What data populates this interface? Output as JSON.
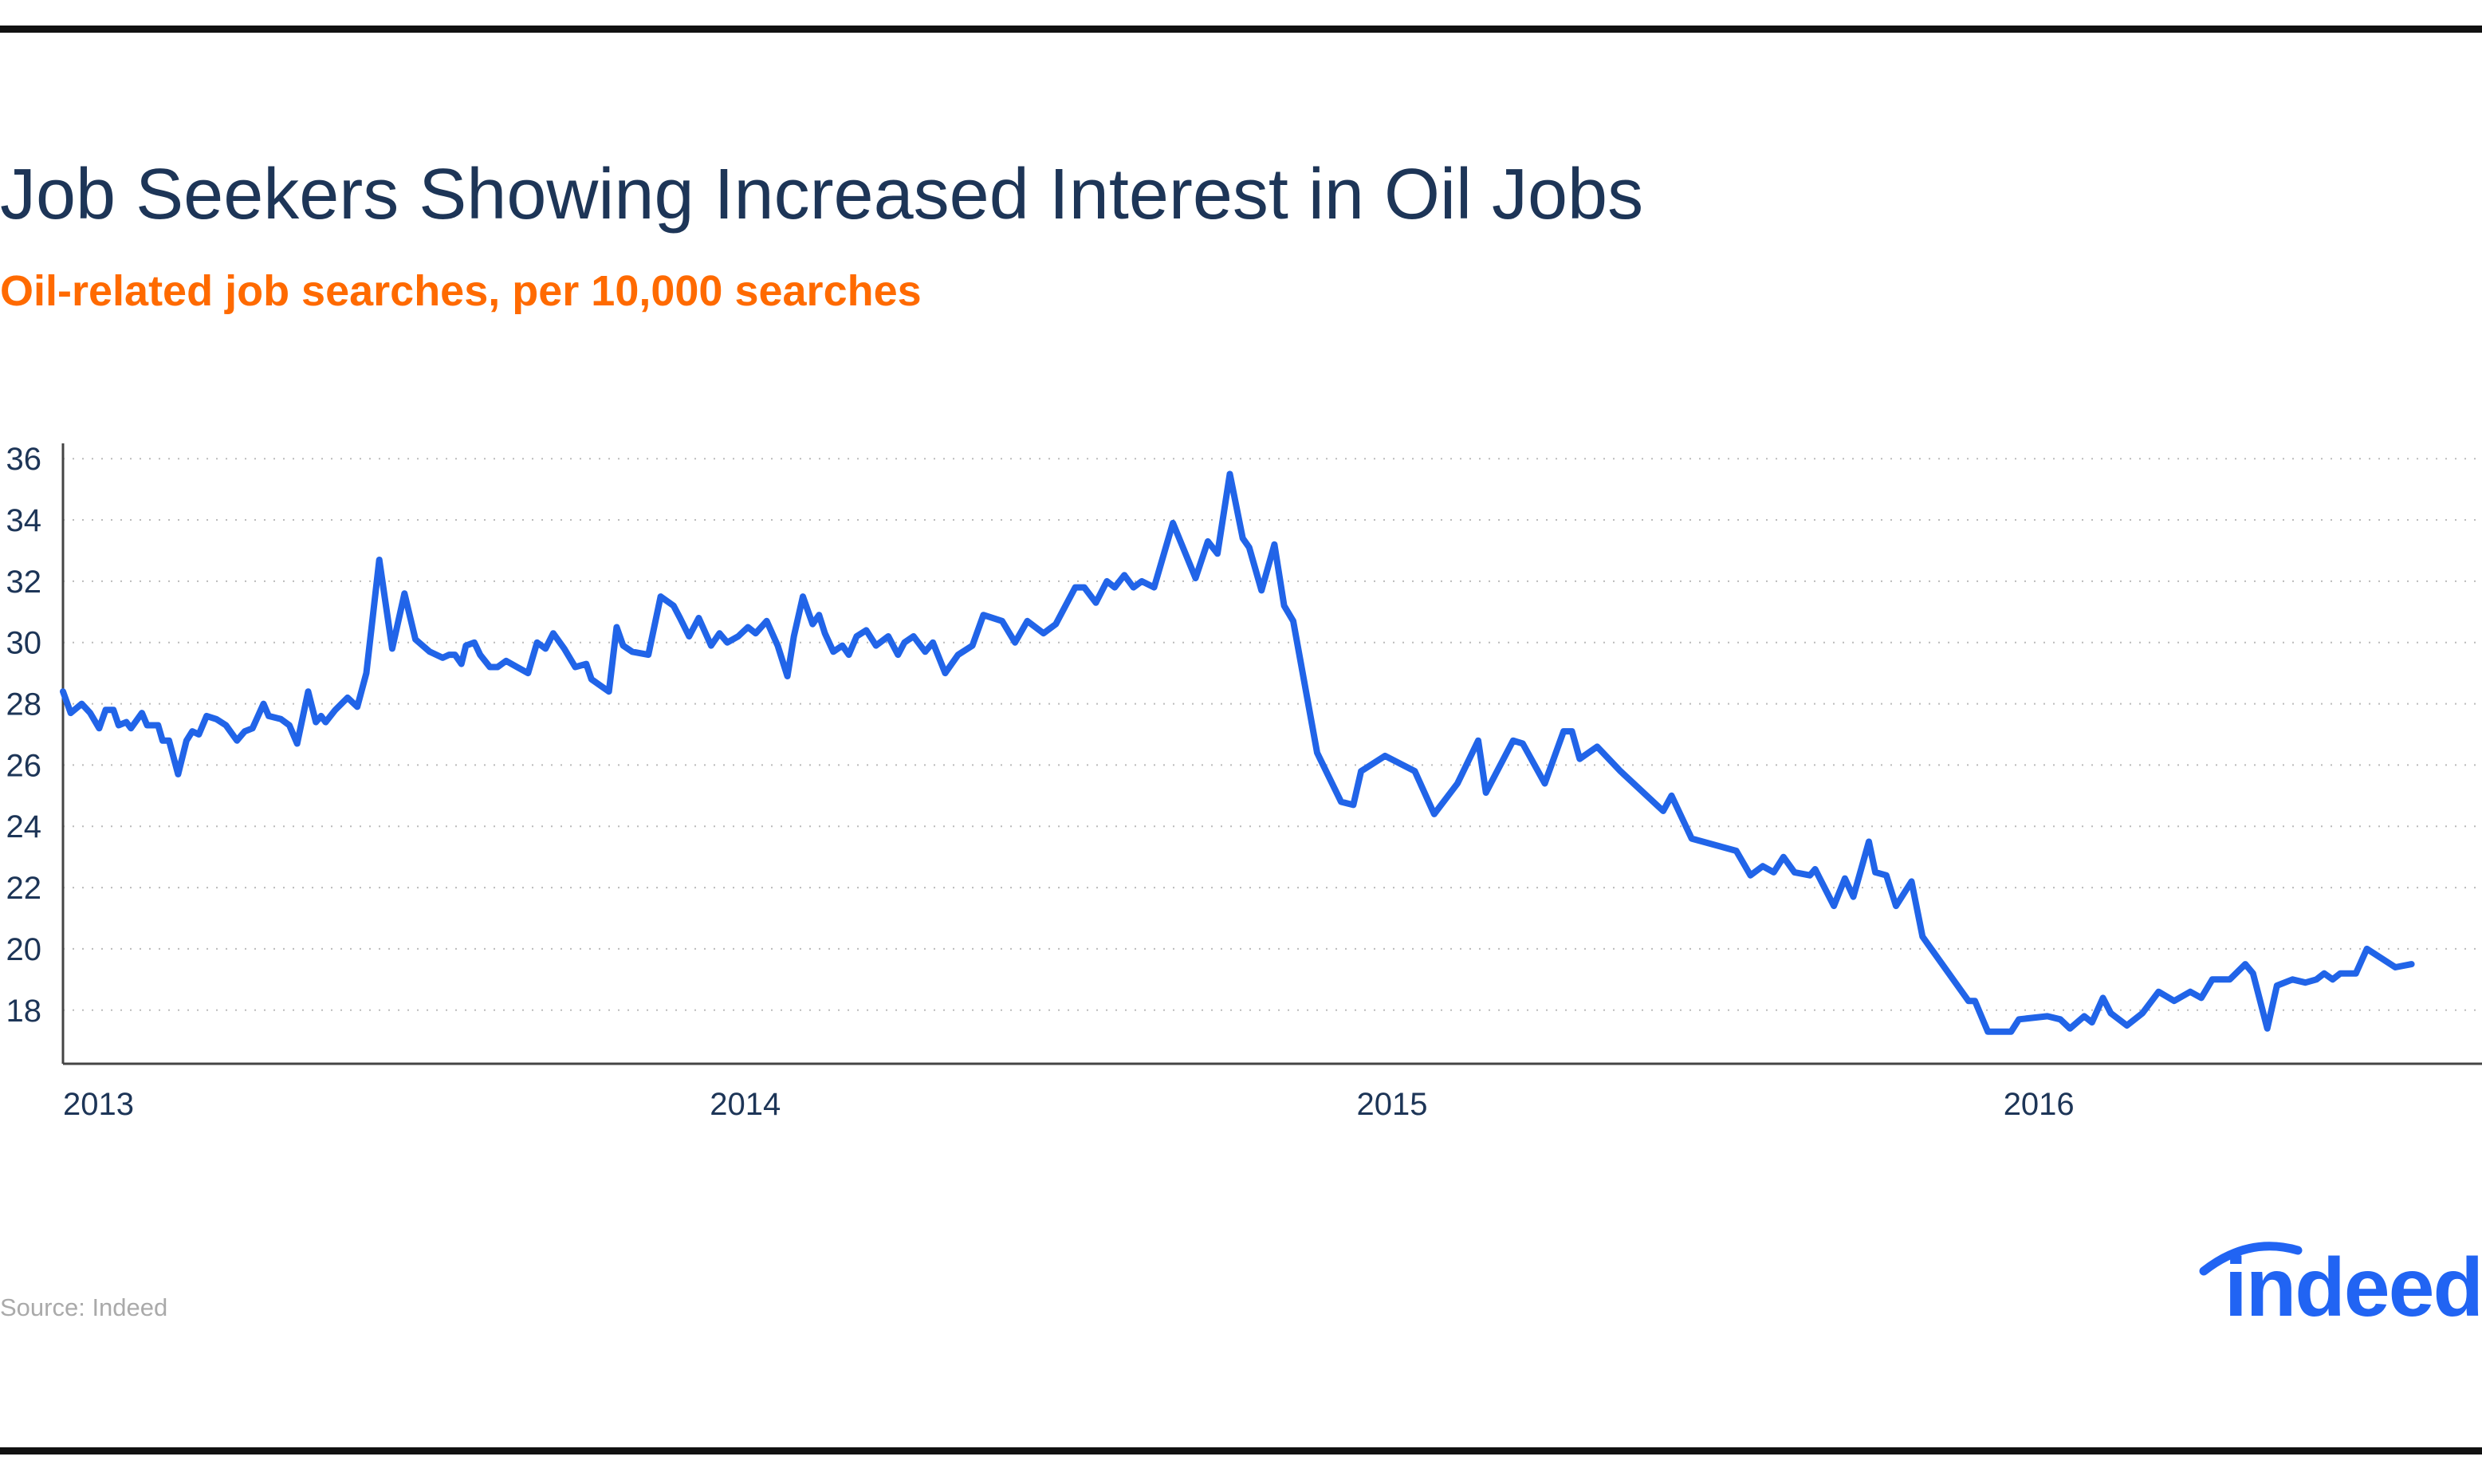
{
  "chart_data": {
    "type": "line",
    "title": "Job Seekers Showing Increased Interest in Oil Jobs",
    "subtitle": "Oil-related job searches, per 10,000 searches",
    "source": "Source: Indeed",
    "logo": "indeed",
    "color": "#2164e8",
    "grid": true,
    "xlim": [
      2013,
      2016.74
    ],
    "xticks": [
      2013,
      2014,
      2015,
      2016
    ],
    "ylim": [
      16.25,
      36.5
    ],
    "yticks": [
      18,
      20,
      22,
      24,
      26,
      28,
      30,
      32,
      34,
      36
    ],
    "x": [
      2013.0,
      2013.012,
      2013.029,
      2013.042,
      2013.056,
      2013.066,
      2013.078,
      2013.086,
      2013.098,
      2013.105,
      2013.122,
      2013.13,
      2013.147,
      2013.154,
      2013.164,
      2013.178,
      2013.191,
      2013.2,
      2013.21,
      2013.222,
      2013.237,
      2013.252,
      2013.269,
      2013.281,
      2013.293,
      2013.31,
      2013.318,
      2013.337,
      2013.35,
      2013.362,
      2013.379,
      2013.391,
      2013.399,
      2013.406,
      2013.421,
      2013.44,
      2013.455,
      2013.469,
      2013.489,
      2013.509,
      2013.528,
      2013.545,
      2013.567,
      2013.587,
      2013.597,
      2013.606,
      2013.616,
      2013.623,
      2013.636,
      2013.645,
      2013.66,
      2013.672,
      2013.685,
      2013.702,
      2013.719,
      2013.733,
      2013.746,
      2013.758,
      2013.775,
      2013.792,
      2013.809,
      2013.817,
      2013.844,
      2013.856,
      2013.866,
      2013.88,
      2013.905,
      2013.924,
      2013.944,
      2013.954,
      2013.968,
      2013.983,
      2014.002,
      2014.015,
      2014.027,
      2014.044,
      2014.059,
      2014.071,
      2014.088,
      2014.105,
      2014.12,
      2014.13,
      2014.144,
      2014.159,
      2014.169,
      2014.178,
      2014.191,
      2014.205,
      2014.215,
      2014.227,
      2014.242,
      2014.257,
      2014.276,
      2014.291,
      2014.301,
      2014.315,
      2014.333,
      2014.345,
      2014.364,
      2014.384,
      2014.406,
      2014.423,
      2014.452,
      2014.472,
      2014.491,
      2014.516,
      2014.535,
      2014.565,
      2014.579,
      2014.597,
      2014.614,
      2014.626,
      2014.641,
      2014.655,
      2014.668,
      2014.687,
      2014.716,
      2014.751,
      2014.77,
      2014.785,
      2014.804,
      2014.824,
      2014.834,
      2014.853,
      2014.873,
      2014.888,
      2014.902,
      2014.939,
      2014.976,
      2014.995,
      2015.007,
      2015.044,
      2015.09,
      2015.12,
      2015.156,
      2015.188,
      2015.2,
      2015.242,
      2015.257,
      2015.291,
      2015.32,
      2015.333,
      2015.345,
      2015.372,
      2015.408,
      2015.474,
      2015.487,
      2015.518,
      2015.587,
      2015.609,
      2015.628,
      2015.645,
      2015.66,
      2015.677,
      2015.701,
      2015.709,
      2015.738,
      2015.755,
      2015.768,
      2015.792,
      2015.802,
      2015.819,
      2015.834,
      2015.858,
      2015.875,
      2015.946,
      2015.956,
      2015.976,
      2016.012,
      2016.024,
      2016.068,
      2016.088,
      2016.103,
      2016.125,
      2016.137,
      2016.154,
      2016.166,
      2016.191,
      2016.215,
      2016.24,
      2016.264,
      2016.289,
      2016.306,
      2016.323,
      2016.35,
      2016.374,
      2016.386,
      2016.408,
      2016.423,
      2016.447,
      2016.467,
      2016.484,
      2016.496,
      2016.509,
      2016.521,
      2016.545,
      2016.562,
      2016.606,
      2016.631
    ],
    "values": [
      28.4,
      27.7,
      28.0,
      27.7,
      27.2,
      27.8,
      27.8,
      27.3,
      27.4,
      27.2,
      27.7,
      27.3,
      27.3,
      26.8,
      26.8,
      25.7,
      26.8,
      27.1,
      27.0,
      27.6,
      27.5,
      27.3,
      26.8,
      27.1,
      27.2,
      28.0,
      27.6,
      27.5,
      27.3,
      26.7,
      28.4,
      27.4,
      27.6,
      27.4,
      27.8,
      28.2,
      27.9,
      29.0,
      32.7,
      29.8,
      31.6,
      30.1,
      29.7,
      29.5,
      29.6,
      29.6,
      29.3,
      29.9,
      30.0,
      29.6,
      29.2,
      29.2,
      29.4,
      29.2,
      29.0,
      30.0,
      29.8,
      30.3,
      29.8,
      29.2,
      29.3,
      28.8,
      28.4,
      30.5,
      29.9,
      29.7,
      29.6,
      31.5,
      31.2,
      30.8,
      30.2,
      30.8,
      29.9,
      30.3,
      30.0,
      30.2,
      30.5,
      30.3,
      30.7,
      29.9,
      28.9,
      30.2,
      31.5,
      30.6,
      30.9,
      30.3,
      29.7,
      29.9,
      29.6,
      30.2,
      30.4,
      29.9,
      30.2,
      29.6,
      30.0,
      30.2,
      29.7,
      30.0,
      29.0,
      29.6,
      29.9,
      30.9,
      30.7,
      30.0,
      30.7,
      30.3,
      30.6,
      31.8,
      31.8,
      31.3,
      32.0,
      31.8,
      32.2,
      31.8,
      32.0,
      31.8,
      33.9,
      32.1,
      33.3,
      32.9,
      35.5,
      33.4,
      33.1,
      31.7,
      33.2,
      31.2,
      30.7,
      26.4,
      24.8,
      24.7,
      25.8,
      26.3,
      25.8,
      24.4,
      25.4,
      26.8,
      25.1,
      26.8,
      26.7,
      25.4,
      27.1,
      27.1,
      26.2,
      26.6,
      25.8,
      24.5,
      25.0,
      23.6,
      23.2,
      22.4,
      22.7,
      22.5,
      23.0,
      22.5,
      22.4,
      22.6,
      21.4,
      22.3,
      21.7,
      23.5,
      22.5,
      22.4,
      21.4,
      22.2,
      20.4,
      18.3,
      18.3,
      17.3,
      17.3,
      17.7,
      17.8,
      17.7,
      17.4,
      17.8,
      17.6,
      18.4,
      17.9,
      17.5,
      17.9,
      18.6,
      18.3,
      18.6,
      18.4,
      19.0,
      19.0,
      19.5,
      19.2,
      17.4,
      18.8,
      19.0,
      18.9,
      19.0,
      19.2,
      19.0,
      19.2,
      19.2,
      20.0,
      19.4,
      19.5
    ]
  }
}
